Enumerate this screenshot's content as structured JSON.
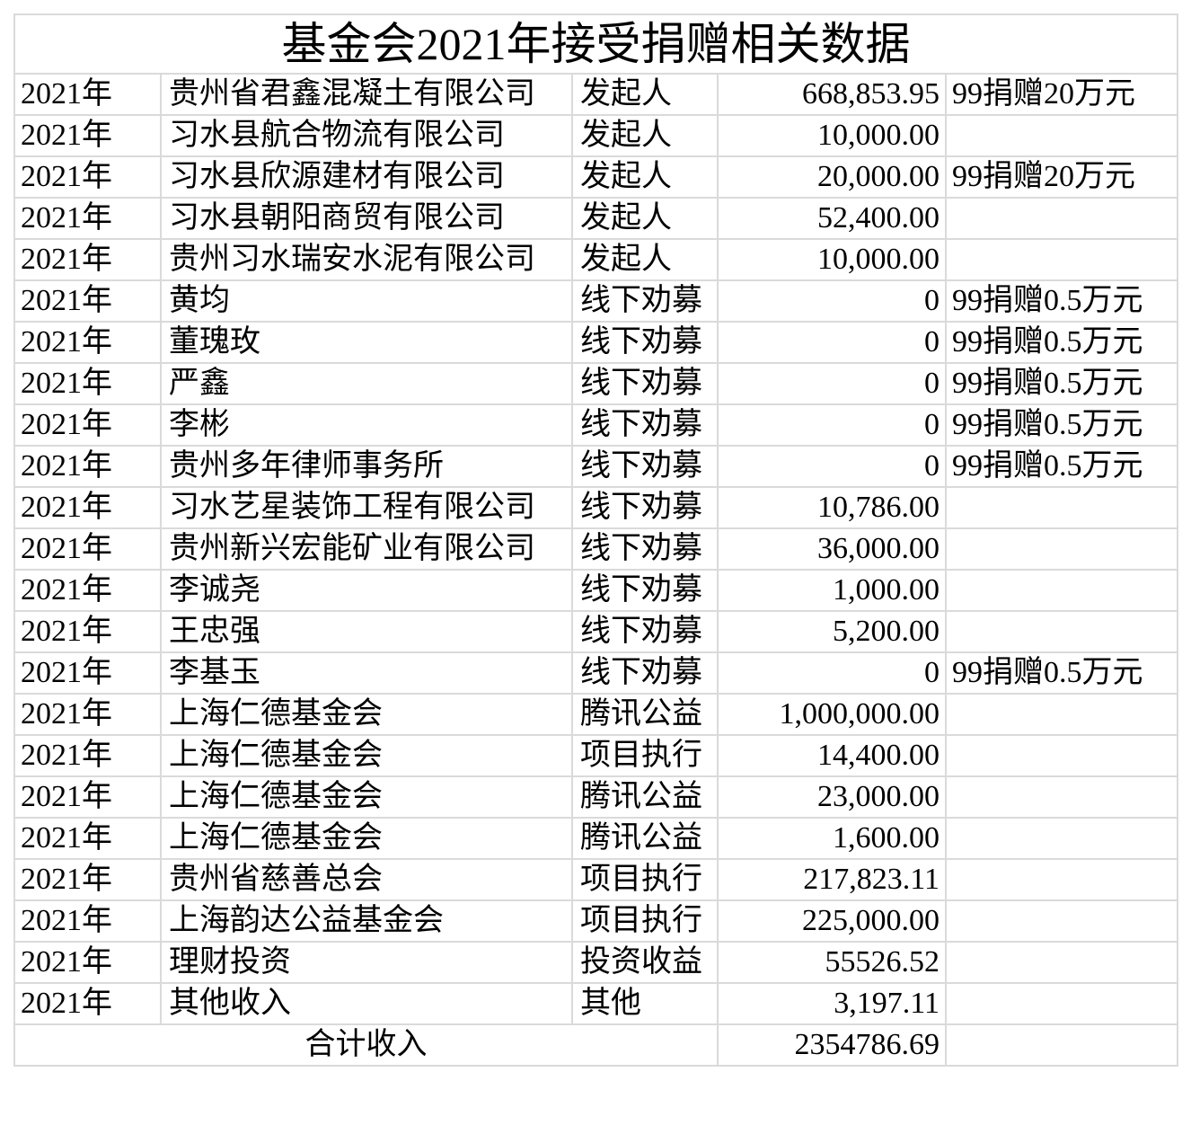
{
  "title": "基金会2021年接受捐赠相关数据",
  "rows": [
    [
      "2021年",
      "贵州省君鑫混凝土有限公司",
      "发起人",
      "668,853.95",
      "99捐赠20万元"
    ],
    [
      "2021年",
      "习水县航合物流有限公司",
      "发起人",
      "10,000.00",
      ""
    ],
    [
      "2021年",
      "习水县欣源建材有限公司",
      "发起人",
      "20,000.00",
      "99捐赠20万元"
    ],
    [
      "2021年",
      "习水县朝阳商贸有限公司",
      "发起人",
      "52,400.00",
      ""
    ],
    [
      "2021年",
      "贵州习水瑞安水泥有限公司",
      "发起人",
      "10,000.00",
      ""
    ],
    [
      "2021年",
      "黄均",
      "线下劝募",
      "0",
      "99捐赠0.5万元"
    ],
    [
      "2021年",
      "董瑰玫",
      "线下劝募",
      "0",
      "99捐赠0.5万元"
    ],
    [
      "2021年",
      "严鑫",
      "线下劝募",
      "0",
      "99捐赠0.5万元"
    ],
    [
      "2021年",
      "李彬",
      "线下劝募",
      "0",
      "99捐赠0.5万元"
    ],
    [
      "2021年",
      "贵州多年律师事务所",
      "线下劝募",
      "0",
      "99捐赠0.5万元"
    ],
    [
      "2021年",
      "习水艺星装饰工程有限公司",
      "线下劝募",
      "10,786.00",
      ""
    ],
    [
      "2021年",
      "贵州新兴宏能矿业有限公司",
      "线下劝募",
      "36,000.00",
      ""
    ],
    [
      "2021年",
      "李诚尧",
      "线下劝募",
      "1,000.00",
      ""
    ],
    [
      "2021年",
      "王忠强",
      "线下劝募",
      "5,200.00",
      ""
    ],
    [
      "2021年",
      "李基玉",
      "线下劝募",
      "0",
      "99捐赠0.5万元"
    ],
    [
      "2021年",
      "上海仁德基金会",
      "腾讯公益",
      "1,000,000.00",
      ""
    ],
    [
      "2021年",
      "上海仁德基金会",
      "项目执行",
      "14,400.00",
      ""
    ],
    [
      "2021年",
      "上海仁德基金会",
      "腾讯公益",
      "23,000.00",
      ""
    ],
    [
      "2021年",
      "上海仁德基金会",
      "腾讯公益",
      "1,600.00",
      ""
    ],
    [
      "2021年",
      "贵州省慈善总会",
      "项目执行",
      "217,823.11",
      ""
    ],
    [
      "2021年",
      "上海韵达公益基金会",
      "项目执行",
      "225,000.00",
      ""
    ],
    [
      "2021年",
      "理财投资",
      "投资收益",
      "55526.52",
      ""
    ],
    [
      "2021年",
      "其他收入",
      "其他",
      "3,197.11",
      ""
    ]
  ],
  "total": {
    "label": "合计收入",
    "value": "2354786.69",
    "note": ""
  }
}
